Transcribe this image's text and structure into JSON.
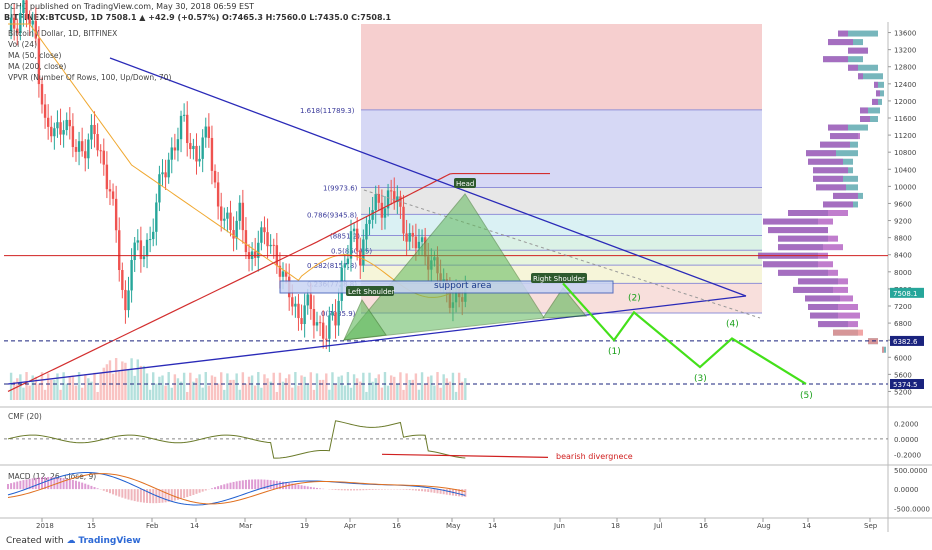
{
  "header": {
    "publisher": "DCHC published on TradingView.com, May 30, 2018 06:59 EST",
    "symbol_line": "BITFINEX:BTCUSD, 1D  7508.1  ▲ +42.9 (+0.57%)  O:7465.3  H:7560.0  L:7435.0  C:7508.1",
    "legend": [
      "Bitcoin / Dollar, 1D, BITFINEX",
      "Vol (24)",
      "MA (50, close)",
      "MA (200, close)",
      "VPVR (Number Of Rows, 100, Up/Down, 70)"
    ]
  },
  "footer": {
    "created_with": "Created with",
    "brand": "TradingView"
  },
  "colors": {
    "up": "#26a69a",
    "down": "#ef5350",
    "ma50": "#f0a830",
    "ma200": "#d32f2f",
    "trend": "#2a2ab8",
    "projection": "#44e01a",
    "fib": "#9090d8"
  },
  "chart_data": [
    {
      "type": "candlestick",
      "title": "Bitcoin / Dollar, 1D, BITFINEX",
      "ylim": [
        5000,
        13800
      ],
      "yticks": [
        13600,
        13200,
        12800,
        12400,
        12000,
        11600,
        11200,
        10800,
        10400,
        10000,
        9600,
        9200,
        8800,
        8400,
        8000,
        7600,
        7200,
        6800,
        6400,
        6000,
        5600,
        5200
      ],
      "xticks": [
        "2018",
        "15",
        "Feb",
        "14",
        "Mar",
        "19",
        "Apr",
        "16",
        "May",
        "14",
        "Jun",
        "18",
        "Jul",
        "16",
        "Aug",
        "14",
        "Sep"
      ],
      "price_labels": [
        {
          "value": 7508.1,
          "text": "7508.1",
          "color": "#26a69a"
        },
        {
          "value": 6382.6,
          "text": "6382.6",
          "color": "#1a237e"
        },
        {
          "value": 5374.5,
          "text": "5374.5",
          "color": "#1a237e"
        }
      ],
      "fib_levels": [
        {
          "label": "1.618(11789.3)",
          "value": 11789.3
        },
        {
          "label": "1(9973.6)",
          "value": 9973.6
        },
        {
          "label": "0.786(9345.8)",
          "value": 9345.8
        },
        {
          "label": "0.5(8504.5)",
          "value": 8504.5
        },
        {
          "label": "0.382(8157.8)",
          "value": 8157.8
        },
        {
          "label": "0.236(7728.8)",
          "value": 7728.8
        },
        {
          "label": "0(7035.9)",
          "value": 7035.9
        },
        {
          "label": "(8851.2)",
          "value": 8851.2
        }
      ],
      "annotations": [
        "Head",
        "Left Shoulder",
        "Right Shoulder",
        "support area",
        "(1)",
        "(2)",
        "(3)",
        "(4)",
        "(5)"
      ],
      "projection_waves": [
        {
          "label": "(1)",
          "value": 6400
        },
        {
          "label": "(2)",
          "value": 7050
        },
        {
          "label": "(3)",
          "value": 5770
        },
        {
          "label": "(4)",
          "value": 6440
        },
        {
          "label": "(5)",
          "value": 5374.5
        }
      ]
    },
    {
      "type": "line",
      "title": "CMF (20)",
      "ylim": [
        -0.3,
        0.35
      ],
      "yticks": [
        0.2,
        0,
        -0.2
      ],
      "ytick_labels": [
        "0.2000",
        "0.0000",
        "-0.2000"
      ],
      "annotation": "bearish divergnece"
    },
    {
      "type": "histogram",
      "title": "MACD (12, 26, close, 9)",
      "ylim": [
        -700,
        550
      ],
      "yticks": [
        500,
        0,
        -500
      ],
      "ytick_labels": [
        "500.0000",
        "0.0000",
        "-500.0000"
      ]
    }
  ]
}
